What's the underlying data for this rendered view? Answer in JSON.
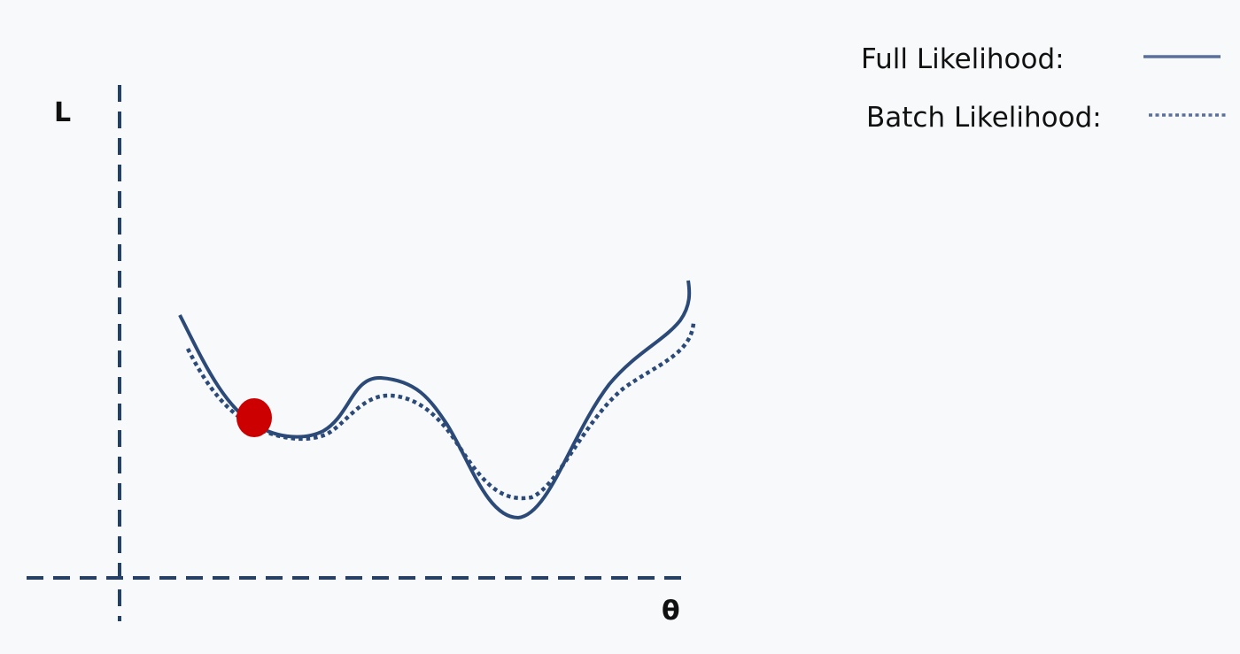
{
  "axes": {
    "y_label": "L",
    "x_label": "θ"
  },
  "legend": {
    "full_label": "Full Likelihood:",
    "batch_label": "Batch Likelihood:"
  },
  "colors": {
    "background": "#f8f9fa",
    "curve": "#2c4a78",
    "legend_line": "#5a7099",
    "axis": "#23406b",
    "marker": "#cc0000"
  },
  "series": [
    {
      "name": "Full Likelihood",
      "style": "solid"
    },
    {
      "name": "Batch Likelihood",
      "style": "dotted"
    }
  ],
  "marker": {
    "kind": "current-parameter-point",
    "on_series": "Full Likelihood"
  }
}
